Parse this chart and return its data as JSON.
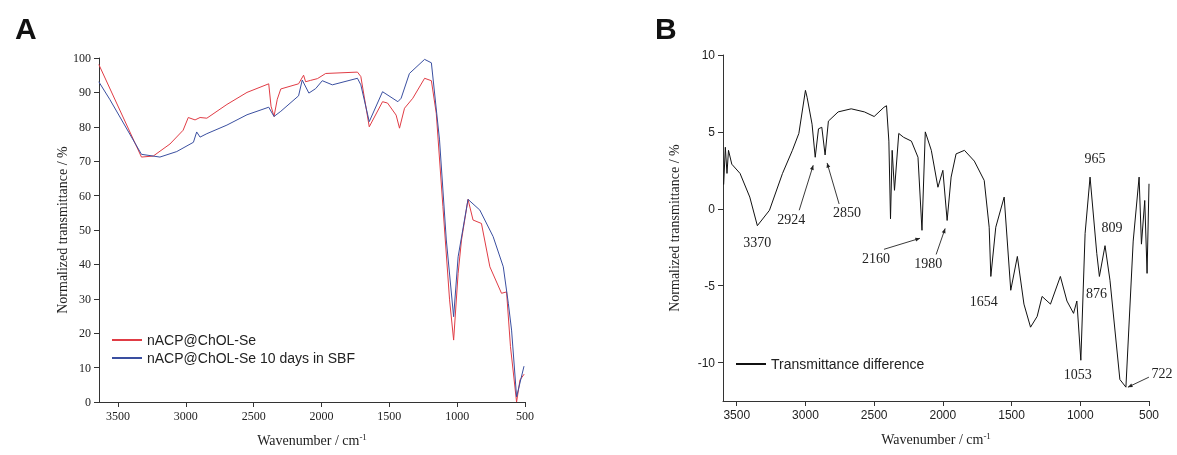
{
  "chart_data": [
    {
      "type": "line",
      "title": "A",
      "xlabel": "Wavenumber / cm$^{-1}$",
      "ylabel": "Normalized transmittance / %",
      "xlim": [
        3640,
        500
      ],
      "ylim": [
        0,
        100
      ],
      "xticks": [
        3500,
        3000,
        2500,
        2000,
        1500,
        1000,
        500
      ],
      "yticks": [
        0,
        10,
        20,
        30,
        40,
        50,
        60,
        70,
        80,
        90,
        100
      ],
      "grid": false,
      "legend": "bottom left",
      "marker": "none",
      "line_style": "solid",
      "series": [
        {
          "name": "nACP@ChOL-Se",
          "color": "#e03c45",
          "x": [
            3640,
            3327,
            3240,
            3117,
            3020,
            2982,
            2932,
            2895,
            2845,
            2697,
            2549,
            2389,
            2372,
            2350,
            2326,
            2300,
            2169,
            2132,
            2117,
            2080,
            2030,
            1969,
            1735,
            1710,
            1648,
            1550,
            1513,
            1450,
            1425,
            1388,
            1327,
            1240,
            1190,
            1154,
            1105,
            1056,
            1026,
            993,
            968,
            920,
            883,
            821,
            759,
            673,
            636,
            607,
            562,
            537,
            508
          ],
          "values": [
            98,
            71.2,
            71.5,
            75,
            79,
            82.7,
            82,
            82.7,
            82.5,
            86.5,
            90,
            92.5,
            86,
            83,
            88,
            91,
            92.5,
            95,
            93.1,
            93.5,
            94,
            95.5,
            95.9,
            94.6,
            80,
            87.3,
            86.9,
            83.4,
            79.6,
            85.4,
            88.3,
            94.1,
            93.4,
            83.9,
            56.8,
            29.7,
            18,
            37.4,
            47.1,
            58.9,
            52.9,
            51.9,
            39.3,
            31.6,
            32,
            16.1,
            0,
            6.4,
            8
          ]
        },
        {
          "name": "nACP@ChOL-Se 10 days in SBF",
          "color": "#3a4fa0",
          "x": [
            3640,
            3561,
            3327,
            3191,
            3067,
            2944,
            2920,
            2895,
            2845,
            2697,
            2549,
            2389,
            2350,
            2300,
            2169,
            2142,
            2093,
            2043,
            1994,
            1920,
            1735,
            1710,
            1648,
            1550,
            1437,
            1413,
            1352,
            1240,
            1190,
            1130,
            1080,
            1026,
            993,
            920,
            833,
            735,
            660,
            623,
            599,
            562,
            508
          ],
          "values": [
            93,
            88,
            72,
            71.2,
            72.8,
            75.5,
            78.5,
            77,
            78,
            80.5,
            83.5,
            85.7,
            83,
            84.5,
            89,
            93.6,
            89.8,
            91.1,
            93.4,
            92.2,
            94.1,
            92.2,
            81.5,
            90.2,
            87.3,
            88.3,
            95.5,
            99.6,
            98.6,
            76.2,
            47.1,
            24.8,
            42.2,
            58.9,
            55.8,
            48.1,
            39.3,
            28.7,
            20.9,
            1.5,
            10.3
          ]
        }
      ]
    },
    {
      "type": "line",
      "title": "B",
      "xlabel": "Wavenumber / cm$^{-1}$",
      "ylabel": "Normalized transmittance / %",
      "xlim": [
        3600,
        500
      ],
      "ylim": [
        -12.5,
        10
      ],
      "xticks": [
        3500,
        3000,
        2500,
        2000,
        1500,
        1000,
        500
      ],
      "yticks": [
        -10,
        -5,
        0,
        5,
        10
      ],
      "grid": false,
      "legend": "bottom left",
      "marker": "none",
      "line_style": "solid",
      "series": [
        {
          "name": "Transmittance difference",
          "color": "#111111",
          "x": [
            3595,
            3583,
            3571,
            3560,
            3536,
            3476,
            3405,
            3350,
            3262,
            3167,
            3095,
            3048,
            3000,
            2988,
            2952,
            2929,
            2905,
            2881,
            2857,
            2833,
            2762,
            2667,
            2571,
            2500,
            2429,
            2410,
            2393,
            2381,
            2369,
            2352,
            2321,
            2286,
            2229,
            2181,
            2152,
            2128,
            2084,
            2036,
            2000,
            1969,
            1940,
            1904,
            1843,
            1771,
            1699,
            1663,
            1651,
            1615,
            1554,
            1506,
            1458,
            1410,
            1362,
            1314,
            1278,
            1217,
            1145,
            1097,
            1049,
            1025,
            996,
            965,
            929,
            880,
            861,
            820,
            784,
            712,
            668,
            615,
            572,
            555,
            531,
            514,
            500
          ],
          "values": [
            1.6,
            4,
            2.3,
            3.8,
            2.9,
            2.3,
            0.76,
            -1.1,
            -0.1,
            2.3,
            3.8,
            4.9,
            7.7,
            7.25,
            5.5,
            3.35,
            5.2,
            5.3,
            3.5,
            5.7,
            6.3,
            6.5,
            6.3,
            6,
            6.6,
            6.7,
            4.4,
            -0.65,
            3.8,
            1.2,
            4.9,
            4.65,
            4.4,
            3.35,
            -1.4,
            5,
            3.8,
            1.4,
            2.5,
            -0.76,
            2.06,
            3.57,
            3.8,
            3.1,
            1.84,
            -1.2,
            -4.4,
            -1.2,
            0.76,
            -5.3,
            -3.1,
            -6.2,
            -7.7,
            -7,
            -5.7,
            -6.2,
            -4.4,
            -6,
            -6.8,
            -6,
            -9.85,
            -1.6,
            2.06,
            -2.9,
            -4.4,
            -2.4,
            -4.65,
            -11.1,
            -11.6,
            -2.1,
            2.06,
            -2.3,
            0.54,
            -4.2,
            1.6
          ]
        }
      ],
      "annotations": [
        {
          "text": "3370",
          "x": 3350,
          "y": -1.1
        },
        {
          "text": "2924",
          "x": 2929,
          "y": 3.35
        },
        {
          "text": "2850",
          "x": 2857,
          "y": 3.5
        },
        {
          "text": "2160",
          "x": 2152,
          "y": -1.4
        },
        {
          "text": "1980",
          "x": 1969,
          "y": -0.76
        },
        {
          "text": "1654",
          "x": 1651,
          "y": -4.4
        },
        {
          "text": "965",
          "x": 929,
          "y": 2.06
        },
        {
          "text": "809",
          "x": 820,
          "y": -2.4
        },
        {
          "text": "876",
          "x": 861,
          "y": -4.4
        },
        {
          "text": "1053",
          "x": 996,
          "y": -9.85
        },
        {
          "text": "722",
          "x": 668,
          "y": -11.6
        }
      ]
    }
  ]
}
